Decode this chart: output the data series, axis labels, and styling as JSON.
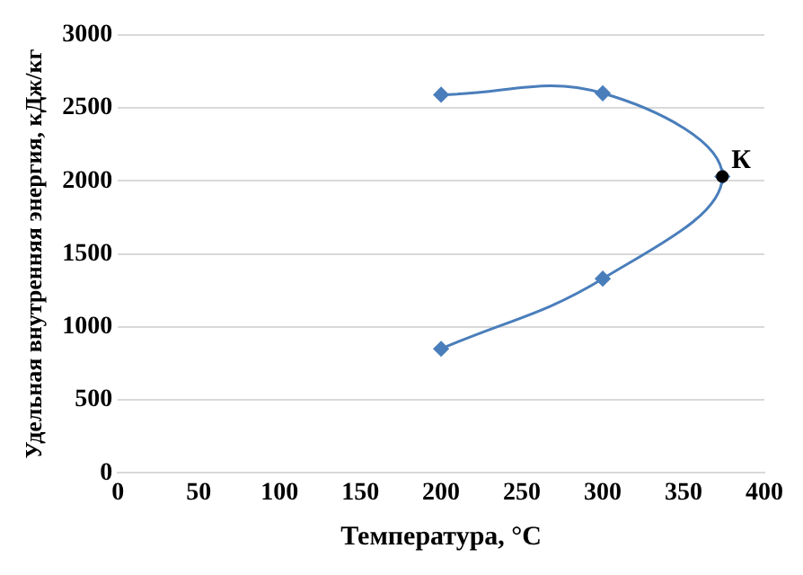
{
  "chart_data": {
    "type": "line",
    "xlabel": "Температура, °C",
    "ylabel": "Удельная внутренняя энергия, кДж/кг",
    "xlim": [
      0,
      400
    ],
    "xticks": [
      0,
      50,
      100,
      150,
      200,
      250,
      300,
      350,
      400
    ],
    "ylim": [
      0,
      3000
    ],
    "yticks": [
      0,
      500,
      1000,
      1500,
      2000,
      2500,
      3000
    ],
    "grid": "y",
    "legend": false,
    "marker": "diamond",
    "line_style": "solid",
    "series": [
      {
        "color": "#4a7ebb",
        "x": [
          200,
          300,
          374,
          300,
          200
        ],
        "values": [
          850,
          1330,
          2030,
          2600,
          2590
        ]
      },
      {
        "type": "scatter",
        "color": "#000000",
        "marker": "circle",
        "x": [
          374
        ],
        "values": [
          2030
        ]
      }
    ],
    "annotations": [
      {
        "text": "К",
        "x": 374,
        "y": 2030
      }
    ]
  }
}
